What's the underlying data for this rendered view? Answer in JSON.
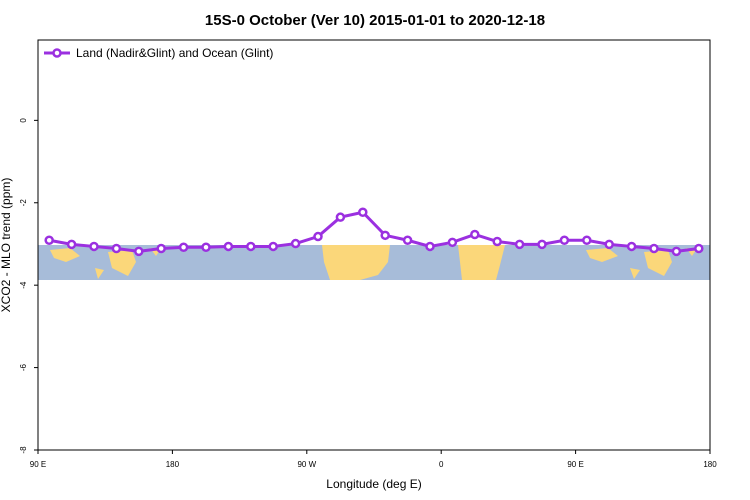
{
  "chart_data": {
    "type": "line",
    "title": "15S-0 October (Ver 10)   2015-01-01 to 2020-12-18",
    "x_label": "Longitude (deg E)",
    "y_label": "XCO2 - MLO trend (ppm)",
    "x": [
      97.5,
      112.5,
      127.5,
      142.5,
      157.5,
      172.5,
      187.5,
      202.5,
      217.5,
      232.5,
      247.5,
      262.5,
      277.5,
      292.5,
      307.5,
      322.5,
      337.5,
      352.5,
      367.5,
      382.5,
      397.5,
      412.5,
      427.5,
      442.5,
      457.5,
      472.5,
      487.5,
      502.5,
      517.5,
      532.5
    ],
    "series": [
      {
        "name": "Land (Nadir&Glint) and Ocean (Glint)",
        "color": "#9b30e0",
        "values": [
          -2.91,
          -3.01,
          -3.06,
          -3.11,
          -3.18,
          -3.11,
          -3.08,
          -3.08,
          -3.06,
          -3.06,
          -3.06,
          -2.99,
          -2.82,
          -2.35,
          -2.23,
          -2.79,
          -2.91,
          -3.06,
          -2.96,
          -2.77,
          -2.94,
          -3.01,
          -3.01,
          -2.91,
          -2.91,
          -3.01,
          -3.06,
          -3.11,
          -3.18,
          -3.11
        ]
      }
    ],
    "xlim": [
      90,
      540
    ],
    "xticks": [
      {
        "value": 90,
        "label": "90 E"
      },
      {
        "value": 180,
        "label": "180"
      },
      {
        "value": 270,
        "label": "90 W"
      },
      {
        "value": 360,
        "label": "0"
      },
      {
        "value": 450,
        "label": "90 E"
      },
      {
        "value": 540,
        "label": "180"
      }
    ],
    "ylim": [
      -8,
      1.95
    ],
    "yticks": [
      0,
      -2,
      -4,
      -6,
      -8
    ],
    "legend": "top-left"
  }
}
